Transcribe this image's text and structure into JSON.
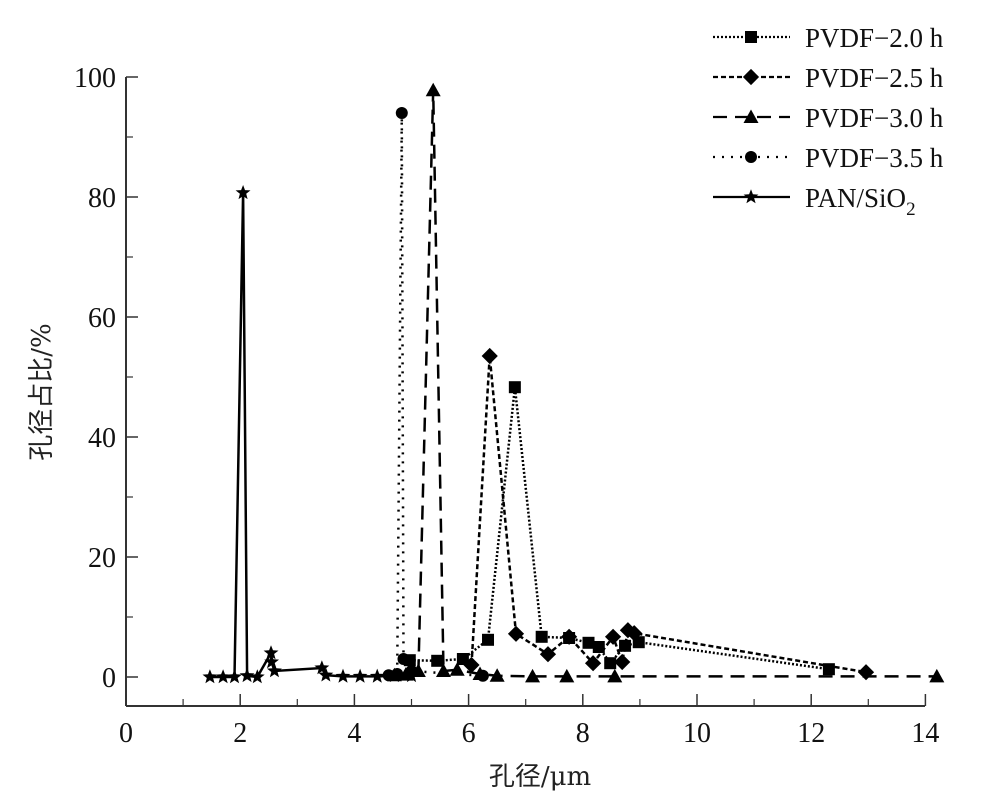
{
  "chart_data": {
    "type": "line",
    "title": "",
    "xlabel": "孔径/μm",
    "ylabel": "孔径占比/%",
    "xlim": [
      0,
      14
    ],
    "ylim": [
      -5,
      100
    ],
    "xticks": [
      "0",
      "2",
      "4",
      "6",
      "8",
      "10",
      "12",
      "14"
    ],
    "xtick_values": [
      0,
      2,
      4,
      6,
      8,
      10,
      12,
      14
    ],
    "yticks": [
      "0",
      "20",
      "40",
      "60",
      "80",
      "100"
    ],
    "ytick_values": [
      0,
      20,
      40,
      60,
      80,
      100
    ],
    "grid": false,
    "legend_position": "top-right",
    "series": [
      {
        "name": "PVDF−2.0 h",
        "line": "dotted",
        "marker": "square",
        "points": [
          [
            4.97,
            2.8
          ],
          [
            5.45,
            2.7
          ],
          [
            5.9,
            3.0
          ],
          [
            6.34,
            6.2
          ],
          [
            6.81,
            48.3
          ],
          [
            7.28,
            6.7
          ],
          [
            7.76,
            6.5
          ],
          [
            8.1,
            5.7
          ],
          [
            8.28,
            5.0
          ],
          [
            8.48,
            2.3
          ],
          [
            8.74,
            5.2
          ],
          [
            8.98,
            5.8
          ],
          [
            12.31,
            1.3
          ]
        ]
      },
      {
        "name": "PVDF−2.5 h",
        "line": "short-dash",
        "marker": "diamond",
        "points": [
          [
            6.05,
            2.0
          ],
          [
            6.37,
            53.5
          ],
          [
            6.83,
            7.2
          ],
          [
            7.39,
            3.8
          ],
          [
            7.76,
            6.7
          ],
          [
            8.18,
            2.3
          ],
          [
            8.53,
            6.7
          ],
          [
            8.69,
            2.5
          ],
          [
            8.79,
            7.8
          ],
          [
            8.9,
            7.3
          ],
          [
            12.96,
            0.8
          ]
        ]
      },
      {
        "name": "PVDF−3.0 h",
        "line": "long-dash",
        "marker": "triangle",
        "points": [
          [
            4.7,
            0.3
          ],
          [
            4.9,
            0.4
          ],
          [
            5.12,
            1.0
          ],
          [
            5.38,
            97.8
          ],
          [
            5.56,
            1.0
          ],
          [
            5.8,
            1.2
          ],
          [
            6.2,
            0.5
          ],
          [
            6.5,
            0.2
          ],
          [
            7.12,
            0.1
          ],
          [
            7.72,
            0.1
          ],
          [
            8.56,
            0.1
          ],
          [
            14.2,
            0.1
          ]
        ]
      },
      {
        "name": "PVDF−3.5 h",
        "line": "sparse-dot",
        "marker": "circle",
        "points": [
          [
            4.6,
            0.3
          ],
          [
            4.75,
            0.5
          ],
          [
            4.83,
            94.0
          ],
          [
            4.86,
            3.0
          ],
          [
            5.0,
            1.0
          ],
          [
            6.25,
            0.2
          ]
        ]
      },
      {
        "name": "PAN/SiO2",
        "line": "solid",
        "marker": "star",
        "points": [
          [
            1.47,
            0.0
          ],
          [
            1.7,
            0.0
          ],
          [
            1.9,
            0.0
          ],
          [
            2.05,
            80.7
          ],
          [
            2.12,
            0.2
          ],
          [
            2.3,
            0.0
          ],
          [
            2.54,
            4.0
          ],
          [
            2.55,
            2.5
          ],
          [
            2.6,
            1.0
          ],
          [
            3.43,
            1.5
          ],
          [
            3.5,
            0.3
          ],
          [
            3.8,
            0.1
          ],
          [
            4.1,
            0.1
          ],
          [
            4.4,
            0.1
          ],
          [
            4.7,
            0.2
          ],
          [
            5.0,
            0.2
          ]
        ]
      }
    ],
    "legend": {
      "entries": [
        "PVDF−2.0 h",
        "PVDF−2.5 h",
        "PVDF−3.0 h",
        "PVDF−3.5 h",
        "PAN/SiO"
      ],
      "subscript_last": "2"
    },
    "colors": {
      "ink": "#000000",
      "axis": "#333333"
    }
  }
}
